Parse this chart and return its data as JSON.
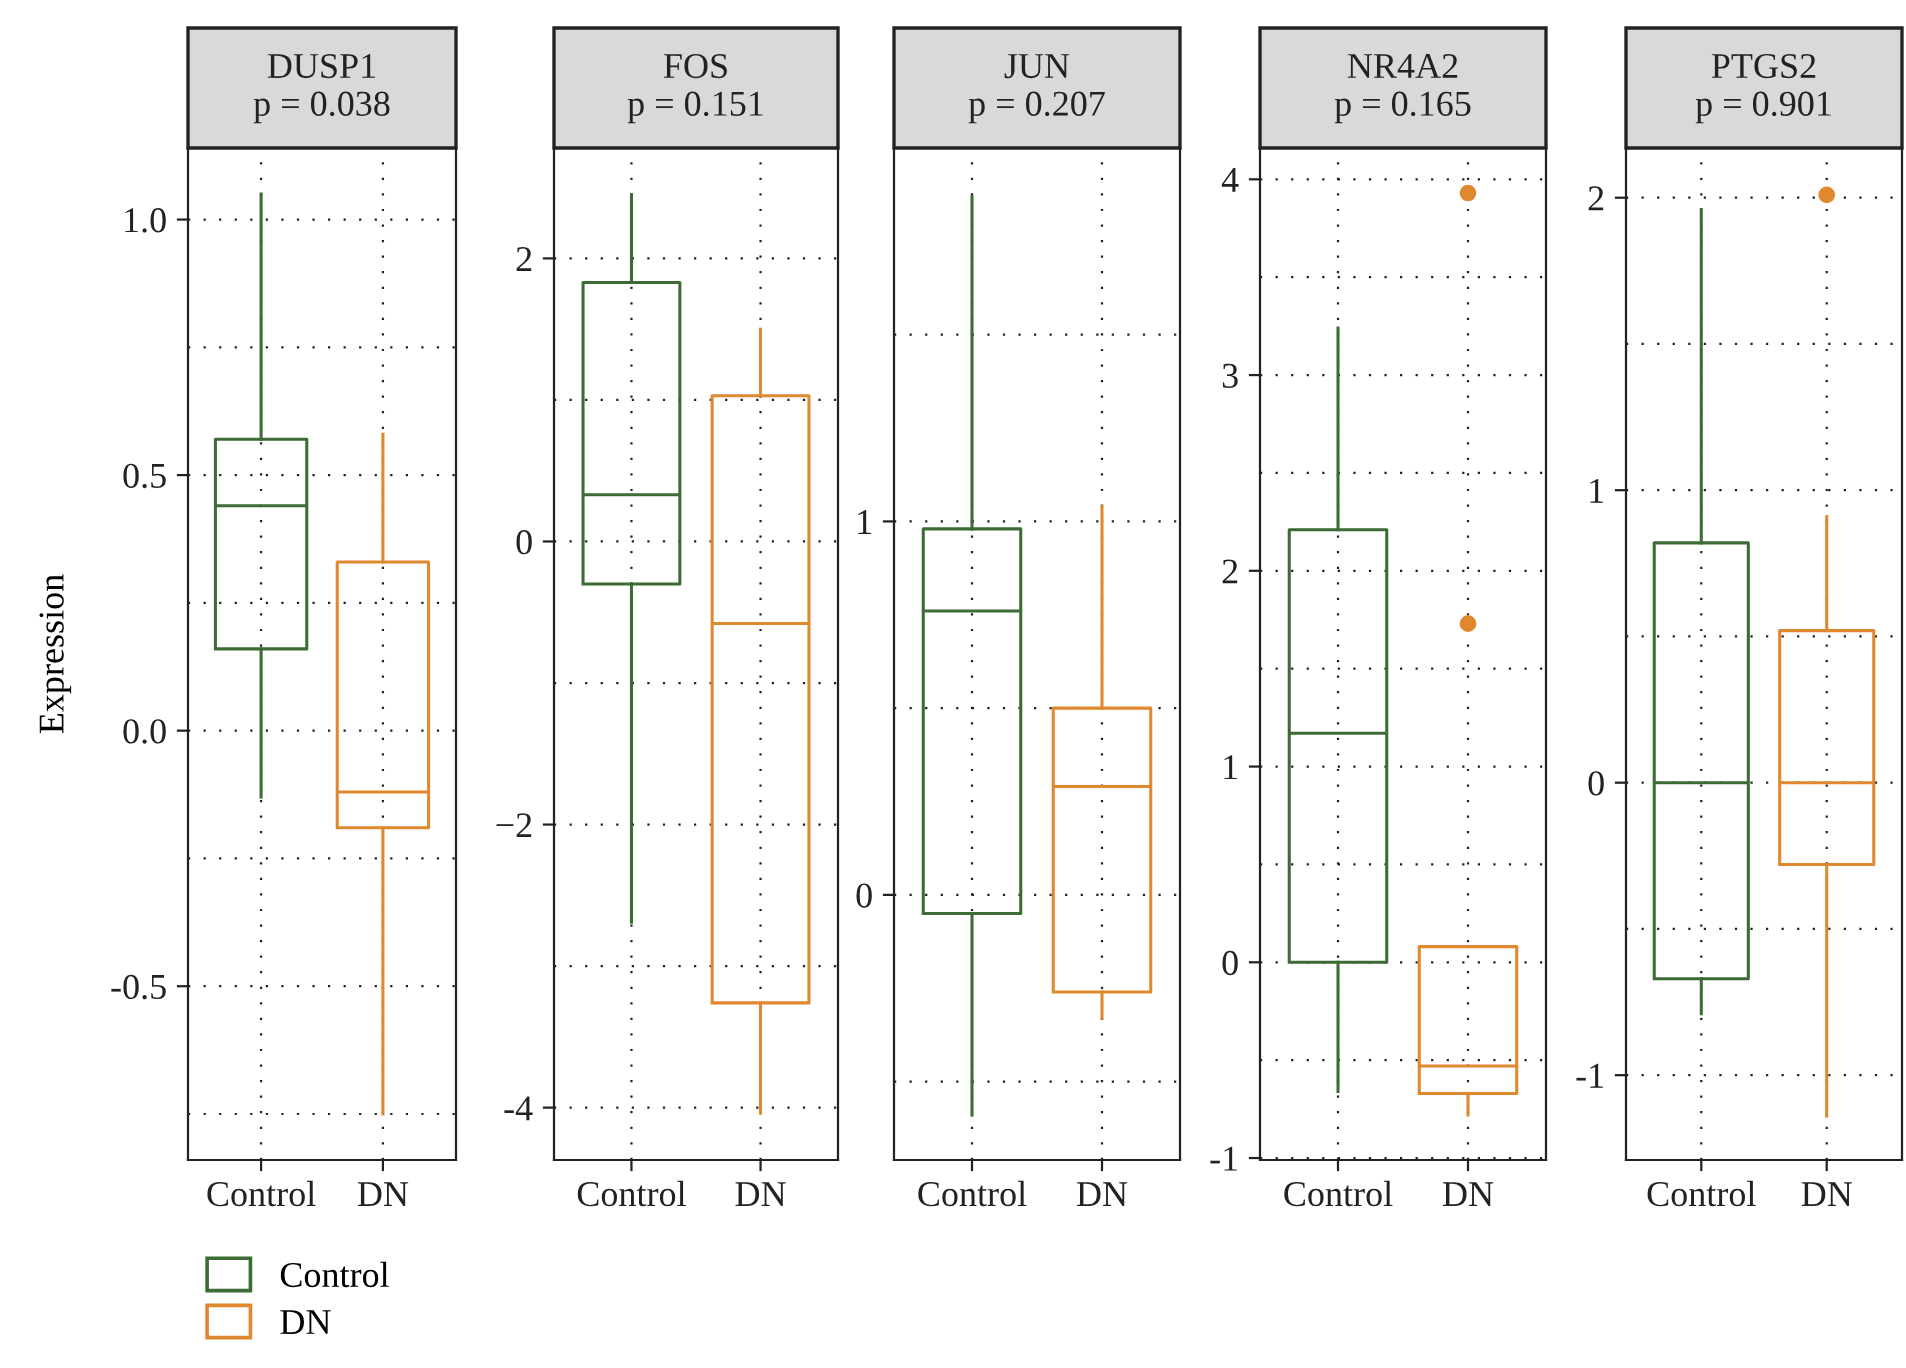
{
  "chart_data": [
    {
      "type": "box",
      "title": "DUSP1",
      "subtitle": "p = 0.038",
      "ylabel": "Expression",
      "categories": [
        "Control",
        "DN"
      ],
      "series": [
        {
          "name": "Control",
          "color": "#3d6b35",
          "boxes": [
            {
              "low": -0.13,
              "q1": 0.16,
              "median": 0.44,
              "q3": 0.57,
              "high": 1.05
            },
            null
          ]
        },
        {
          "name": "DN",
          "color": "#e0882e",
          "boxes": [
            null,
            {
              "low": -0.75,
              "q1": -0.19,
              "median": -0.12,
              "q3": 0.33,
              "high": 0.58
            }
          ]
        }
      ],
      "ylim": [
        -0.84,
        1.14
      ],
      "yticks": [
        {
          "value": -0.5,
          "label": "-0.5"
        },
        {
          "value": 0,
          "label": "0.0"
        },
        {
          "value": 0.5,
          "label": "0.5"
        },
        {
          "value": 1,
          "label": "1.0"
        }
      ],
      "grid": true,
      "legend": "bottom left"
    },
    {
      "type": "box",
      "title": "FOS",
      "subtitle": "p = 0.151",
      "categories": [
        "Control",
        "DN"
      ],
      "series": [
        {
          "color": "#3d6b35",
          "boxes": [
            {
              "low": -2.69,
              "q1": -0.3,
              "median": 0.33,
              "q3": 1.83,
              "high": 2.45
            },
            null
          ]
        },
        {
          "color": "#e0882e",
          "boxes": [
            null,
            {
              "low": -4.04,
              "q1": -3.26,
              "median": -0.58,
              "q3": 1.03,
              "high": 1.5
            }
          ]
        }
      ],
      "ylim": [
        -4.37,
        2.78
      ],
      "yticks": [
        {
          "value": -4,
          "label": "-4"
        },
        {
          "value": -2,
          "label": "−2"
        },
        {
          "value": 0,
          "label": "0"
        },
        {
          "value": 2,
          "label": "2"
        }
      ],
      "grid": true
    },
    {
      "type": "box",
      "title": "JUN",
      "subtitle": "p = 0.207",
      "categories": [
        "Control",
        "DN"
      ],
      "series": [
        {
          "color": "#3d6b35",
          "boxes": [
            {
              "low": -0.59,
              "q1": -0.05,
              "median": 0.76,
              "q3": 0.98,
              "high": 1.87
            },
            null
          ]
        },
        {
          "color": "#e0882e",
          "boxes": [
            null,
            {
              "low": -0.33,
              "q1": -0.26,
              "median": 0.29,
              "q3": 0.5,
              "high": 1.04
            }
          ]
        }
      ],
      "ylim": [
        -0.71,
        2.0
      ],
      "yticks": [
        {
          "value": 0,
          "label": "0"
        },
        {
          "value": 1,
          "label": "1"
        }
      ],
      "grid": true
    },
    {
      "type": "box",
      "title": "NR4A2",
      "subtitle": "p = 0.165",
      "categories": [
        "Control",
        "DN"
      ],
      "series": [
        {
          "color": "#3d6b35",
          "boxes": [
            {
              "low": -0.66,
              "q1": 0.0,
              "median": 1.17,
              "q3": 2.21,
              "high": 3.24
            },
            null
          ]
        },
        {
          "color": "#e0882e",
          "boxes": [
            null,
            {
              "low": -0.78,
              "q1": -0.67,
              "median": -0.53,
              "q3": 0.08,
              "high": 0.08,
              "outliers": [
                3.93,
                1.73
              ]
            }
          ]
        }
      ],
      "ylim": [
        -1.01,
        4.16
      ],
      "yticks": [
        {
          "value": -1,
          "label": "-1"
        },
        {
          "value": 0,
          "label": "0"
        },
        {
          "value": 1,
          "label": "1"
        },
        {
          "value": 2,
          "label": "2"
        },
        {
          "value": 3,
          "label": "3"
        },
        {
          "value": 4,
          "label": "4"
        }
      ],
      "grid": true
    },
    {
      "type": "box",
      "title": "PTGS2",
      "subtitle": "p = 0.901",
      "categories": [
        "Control",
        "DN"
      ],
      "series": [
        {
          "color": "#3d6b35",
          "boxes": [
            {
              "low": -0.79,
              "q1": -0.67,
              "median": 0.0,
              "q3": 0.82,
              "high": 1.96
            },
            null
          ]
        },
        {
          "color": "#e0882e",
          "boxes": [
            null,
            {
              "low": -1.14,
              "q1": -0.28,
              "median": 0.0,
              "q3": 0.52,
              "high": 0.91,
              "outliers": [
                2.01
              ]
            }
          ]
        }
      ],
      "ylim": [
        -1.29,
        2.17
      ],
      "yticks": [
        {
          "value": -1,
          "label": "-1"
        },
        {
          "value": 0,
          "label": "0"
        },
        {
          "value": 1,
          "label": "1"
        },
        {
          "value": 2,
          "label": "2"
        }
      ],
      "grid": true
    }
  ]
}
